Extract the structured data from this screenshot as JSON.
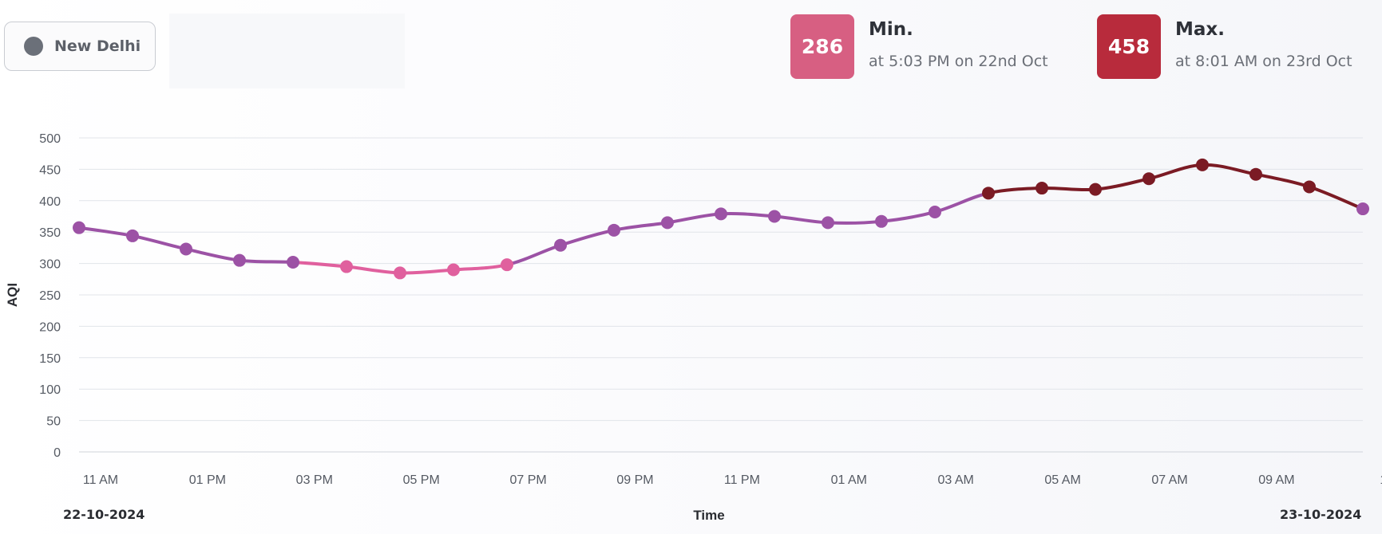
{
  "location": {
    "name": "New Delhi",
    "icon": "circle-dot-icon"
  },
  "stats": {
    "min": {
      "value": "286",
      "label": "Min.",
      "detail": "at 5:03 PM on 22nd Oct",
      "color": "#d75f82"
    },
    "max": {
      "value": "458",
      "label": "Max.",
      "detail": "at 8:01 AM on 23rd Oct",
      "color": "#b82b3c"
    }
  },
  "footer": {
    "start_date": "22-10-2024",
    "end_date": "23-10-2024"
  },
  "chart_data": {
    "type": "line",
    "xlabel": "Time",
    "ylabel": "AQI",
    "ylim": [
      0,
      500
    ],
    "yticks": [
      0,
      50,
      100,
      150,
      200,
      250,
      300,
      350,
      400,
      450,
      500
    ],
    "xtick_labels": [
      "11 AM",
      "01 PM",
      "03 PM",
      "05 PM",
      "07 PM",
      "09 PM",
      "11 PM",
      "01 AM",
      "03 AM",
      "05 AM",
      "07 AM",
      "09 AM",
      "1"
    ],
    "grid": true,
    "series": [
      {
        "values": [
          357,
          344,
          323,
          305,
          302,
          295,
          285,
          290,
          298,
          329,
          353,
          365,
          379,
          375,
          365,
          367,
          382,
          412,
          420,
          418,
          435,
          457,
          442,
          422,
          387
        ]
      }
    ],
    "colors": {
      "low": "#e0609e",
      "mid": "#9c52a5",
      "high": "#7b1b24"
    }
  }
}
